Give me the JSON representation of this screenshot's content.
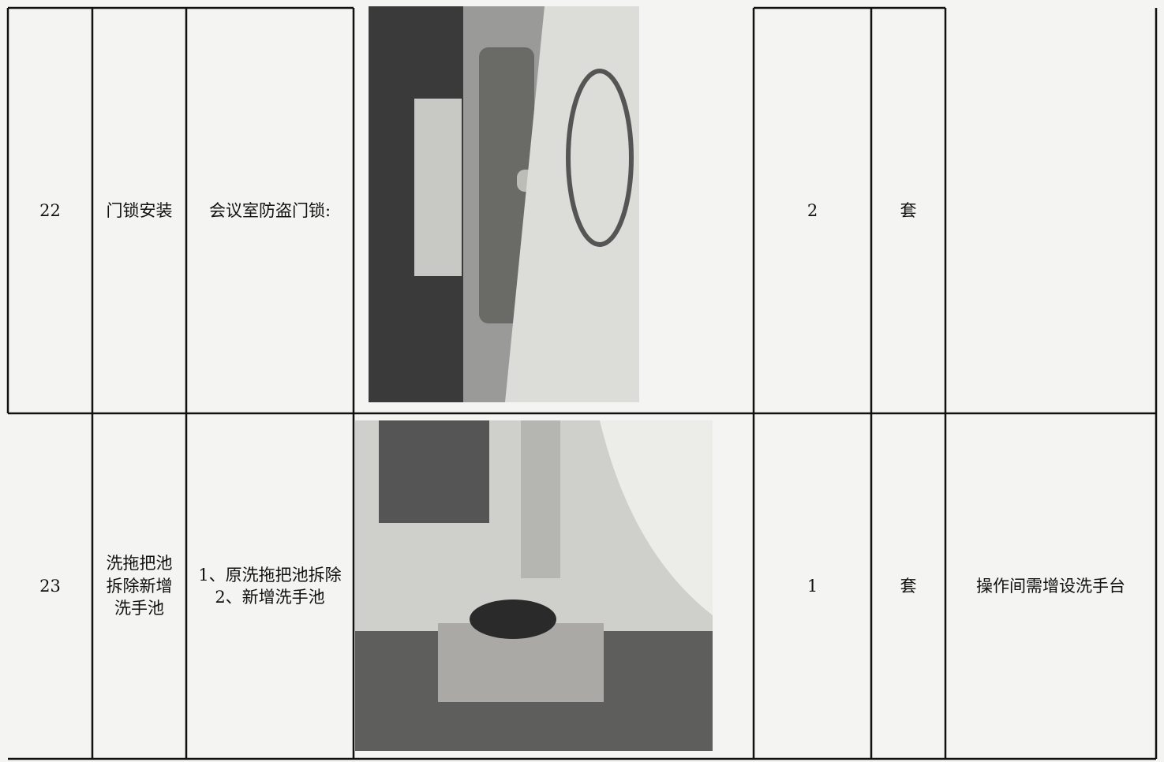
{
  "table": {
    "rows": [
      {
        "no": "22",
        "item": "门锁安装",
        "desc": [
          "会议室防盗门锁:"
        ],
        "qty": 2,
        "unit": "套"
      },
      {
        "no": "23",
        "item": "洗拖把池拆除新增洗手池",
        "desc": [
          "1、原洗拖把池拆除",
          "2、新增洗手池"
        ],
        "qty": 1,
        "unit": "套",
        "remark": "操作间需增设洗手台"
      }
    ]
  }
}
